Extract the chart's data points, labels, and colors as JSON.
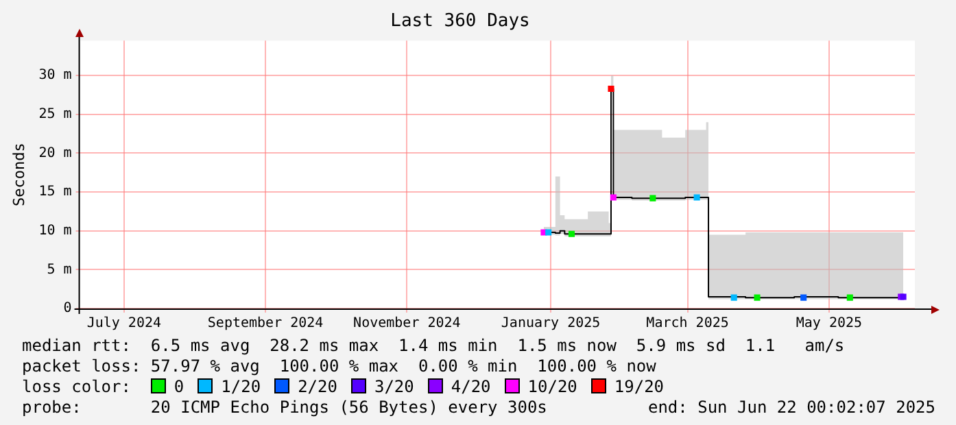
{
  "chart_data": {
    "type": "line",
    "title": "Last 360 Days",
    "ylabel": "Seconds",
    "xlim": [
      "2024-06-27",
      "2025-06-22"
    ],
    "xticks": [
      {
        "value": "2024-07-16",
        "label": "July 2024"
      },
      {
        "value": "2024-09-15",
        "label": "September 2024"
      },
      {
        "value": "2024-11-15",
        "label": "November 2024"
      },
      {
        "value": "2025-01-16",
        "label": "January 2025"
      },
      {
        "value": "2025-03-16",
        "label": "March 2025"
      },
      {
        "value": "2025-05-16",
        "label": "May 2025"
      }
    ],
    "ylim": [
      0,
      34.5
    ],
    "yticks": [
      0,
      {
        "value": 5,
        "label": "5 m"
      },
      {
        "value": 10,
        "label": "10 m"
      },
      {
        "value": 15,
        "label": "15 m"
      },
      {
        "value": 20,
        "label": "20 m"
      },
      {
        "value": 25,
        "label": "25 m"
      },
      {
        "value": 30,
        "label": "30 m"
      }
    ],
    "grid": true,
    "legend": "bottom",
    "legend_title": "loss color:",
    "series": [
      {
        "color": "#000000",
        "x": [
          "2025-01-13",
          "2025-01-18",
          "2025-01-20",
          "2025-01-22",
          "2025-02-01",
          "2025-02-10",
          "2025-02-11",
          "2025-02-12",
          "2025-02-20",
          "2025-03-05",
          "2025-03-15",
          "2025-03-24",
          "2025-03-25",
          "2025-04-10",
          "2025-05-01",
          "2025-05-20",
          "2025-06-17"
        ],
        "values": [
          9.8,
          9.7,
          10,
          9.6,
          9.6,
          9.6,
          28.3,
          14.3,
          14.2,
          14.2,
          14.3,
          14.3,
          1.5,
          1.4,
          1.5,
          1.4,
          1.5
        ],
        "lower": [
          9.5,
          9.4,
          9.6,
          9.3,
          9.3,
          9.3,
          28,
          14,
          13.9,
          13.9,
          14,
          14,
          1.2,
          1.2,
          1.2,
          1.2,
          1.2
        ],
        "upper": [
          10.5,
          17,
          12,
          11.5,
          12.5,
          11,
          30,
          23,
          23,
          22,
          23,
          24,
          9.5,
          9.8,
          9.8,
          9.8,
          10.5
        ]
      },
      {
        "type": "scatter",
        "marker": "square",
        "name": "0",
        "color": "#00ee00",
        "x": [
          "2025-01-25",
          "2025-03-01",
          "2025-04-15",
          "2025-05-25"
        ],
        "values": [
          9.6,
          14.2,
          1.4,
          1.4
        ]
      },
      {
        "type": "scatter",
        "marker": "square",
        "name": "1/20",
        "color": "#00b8ff",
        "x": [
          "2025-01-15",
          "2025-03-20",
          "2025-04-05"
        ],
        "values": [
          9.8,
          14.3,
          1.4
        ]
      },
      {
        "type": "scatter",
        "marker": "square",
        "name": "2/20",
        "color": "#0059ff",
        "x": [
          "2025-05-05"
        ],
        "values": [
          1.4
        ]
      },
      {
        "type": "scatter",
        "marker": "square",
        "name": "3/20",
        "color": "#5500ff",
        "x": [
          "2025-06-17"
        ],
        "values": [
          1.5
        ]
      },
      {
        "type": "scatter",
        "marker": "square",
        "name": "4/20",
        "color": "#8a00ff",
        "x": [
          "2025-06-16"
        ],
        "values": [
          1.5
        ]
      },
      {
        "type": "scatter",
        "marker": "square",
        "name": "10/20",
        "color": "#ff00ff",
        "x": [
          "2025-01-13",
          "2025-02-12"
        ],
        "values": [
          9.8,
          14.3
        ]
      },
      {
        "type": "scatter",
        "marker": "square",
        "name": "19/20",
        "color": "#ff0000",
        "x": [
          "2025-02-11"
        ],
        "values": [
          28.3
        ]
      }
    ],
    "marker": "none",
    "annotations": [
      "median rtt:  6.5 ms avg  28.2 ms max  1.4 ms min  1.5 ms now  5.9 ms sd  1.1   am/s",
      "packet loss: 57.97 % avg  100.00 % max  0.00 % min  100.00 % now",
      "probe:       20 ICMP Echo Pings (56 Bytes) every 300s",
      "end: Sun Jun 22 00:02:07 2025"
    ]
  }
}
